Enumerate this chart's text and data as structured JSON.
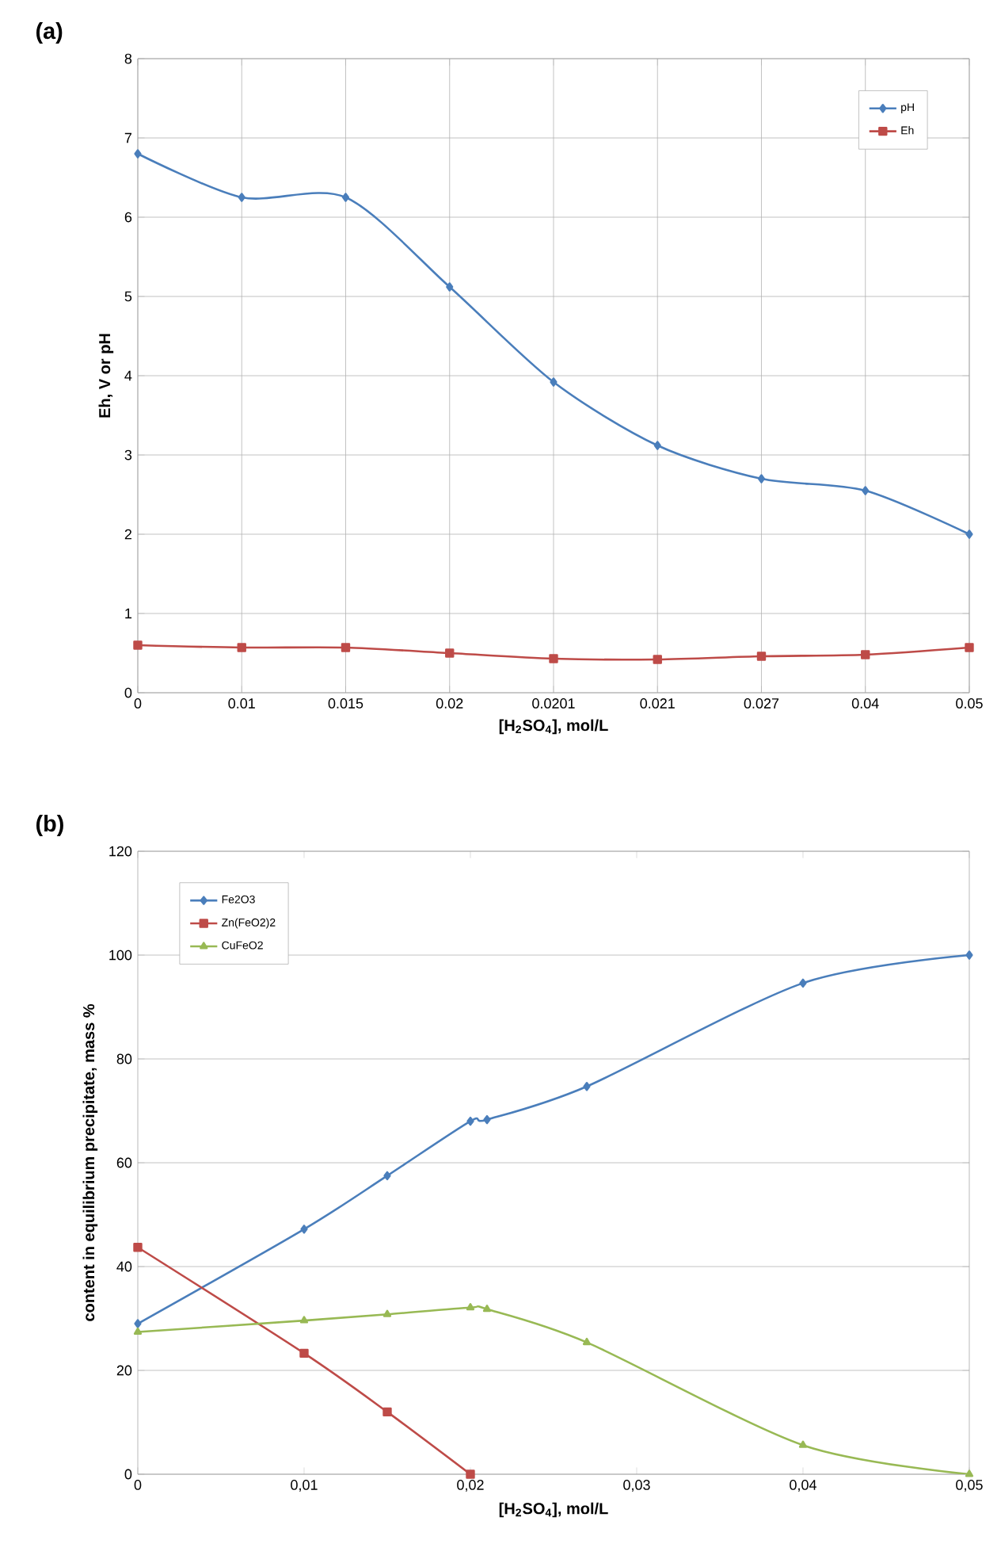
{
  "chart_data": [
    {
      "type": "line",
      "title": "(a)",
      "xlabel": "[H$_{2}$SO$_{4}$], mol/L",
      "ylabel": "Eh, V or pH",
      "categories": [
        "0",
        "0.01",
        "0.015",
        "0.02",
        "0.0201",
        "0.021",
        "0.027",
        "0.04",
        "0.05"
      ],
      "series": [
        {
          "name": "pH",
          "color": "#4a7ebb",
          "marker": "diamond",
          "values": [
            6.8,
            6.25,
            6.25,
            5.12,
            3.92,
            3.12,
            2.7,
            2.55,
            2.0
          ]
        },
        {
          "name": "Eh",
          "color": "#be4b48",
          "marker": "square",
          "values": [
            0.6,
            0.57,
            0.57,
            0.5,
            0.43,
            0.42,
            0.46,
            0.48,
            0.57
          ]
        }
      ],
      "ylim": [
        0,
        8
      ],
      "yticks": [
        0,
        1,
        2,
        3,
        4,
        5,
        6,
        7,
        8
      ],
      "grid": true,
      "legend": "top right"
    },
    {
      "type": "line",
      "title": "(b)",
      "xlabel": "[H$_{2}$SO$_{4}$], mol/L",
      "ylabel": "content in equilibrium precipitate, mass %",
      "series": [
        {
          "name": "Fe2O3",
          "color": "#4a7ebb",
          "marker": "diamond",
          "x": [
            0,
            0.01,
            0.015,
            0.02,
            0.021,
            0.027,
            0.04,
            0.05
          ],
          "values": [
            29,
            47.2,
            57.5,
            68,
            68.3,
            74.7,
            94.6,
            100
          ]
        },
        {
          "name": "Zn(FeO2)2",
          "color": "#be4b48",
          "marker": "square",
          "x": [
            0,
            0.01,
            0.015,
            0.02
          ],
          "values": [
            43.7,
            23.3,
            12,
            0
          ]
        },
        {
          "name": "CuFeO2",
          "color": "#98b954",
          "marker": "triangle",
          "x": [
            0,
            0.01,
            0.015,
            0.02,
            0.021,
            0.027,
            0.04,
            0.05
          ],
          "values": [
            27.4,
            29.6,
            30.8,
            32.1,
            31.8,
            25.4,
            5.6,
            0
          ]
        }
      ],
      "xlim": [
        0,
        0.05
      ],
      "xticks": [
        0,
        {
          "value": 0.01,
          "label": "0,01"
        },
        {
          "value": 0.02,
          "label": "0,02"
        },
        {
          "value": 0.03,
          "label": "0,03"
        },
        {
          "value": 0.04,
          "label": "0,04"
        },
        {
          "value": 0.05,
          "label": "0,05"
        }
      ],
      "ylim": [
        0,
        120
      ],
      "yticks": [
        0,
        20,
        40,
        60,
        80,
        100,
        120
      ],
      "grid": "y",
      "legend": "top left"
    }
  ]
}
